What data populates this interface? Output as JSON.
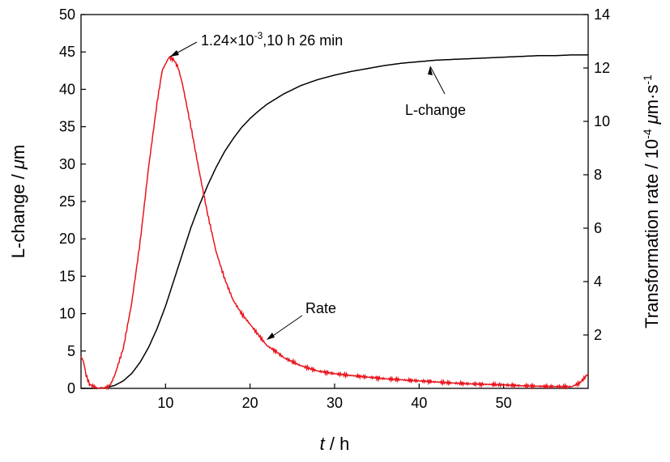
{
  "chart_data": {
    "type": "line",
    "title": "",
    "x_axis": {
      "label_italic": "t",
      "label_rest": " / h",
      "range": [
        0,
        60
      ],
      "ticks": [
        10,
        20,
        30,
        40,
        50
      ],
      "tick_labels": [
        "10",
        "20",
        "30",
        "40",
        "50"
      ]
    },
    "y_left": {
      "label_prefix": "L-change / ",
      "label_italic": "μ",
      "label_suffix": "m",
      "range": [
        0,
        50
      ],
      "ticks": [
        0,
        5,
        10,
        15,
        20,
        25,
        30,
        35,
        40,
        45,
        50
      ],
      "tick_labels": [
        "0",
        "5",
        "10",
        "15",
        "20",
        "25",
        "30",
        "35",
        "40",
        "45",
        "50"
      ]
    },
    "y_right": {
      "label_prefix": "Transformation rate / 10",
      "label_exp": "-4",
      "label_italic": " μ",
      "label_suffix": "m·s",
      "label_exp2": "-1",
      "range": [
        0,
        14
      ],
      "ticks": [
        2,
        4,
        6,
        8,
        10,
        12,
        14
      ],
      "tick_labels": [
        "2",
        "4",
        "6",
        "8",
        "10",
        "12",
        "14"
      ]
    },
    "series": [
      {
        "name": "L-change",
        "axis": "left",
        "color": "#000000",
        "x": [
          0,
          2,
          3,
          4,
          5,
          6,
          7,
          8,
          9,
          10,
          11,
          12,
          13,
          14,
          15,
          16,
          17,
          18,
          19,
          20,
          21,
          22,
          24,
          26,
          28,
          30,
          32,
          34,
          36,
          38,
          40,
          42,
          44,
          46,
          48,
          50,
          52,
          54,
          56,
          58,
          60
        ],
        "y": [
          0,
          0,
          0.1,
          0.4,
          1.0,
          2.0,
          3.5,
          5.5,
          8.0,
          11.0,
          14.5,
          18.0,
          21.5,
          24.5,
          27.2,
          29.6,
          31.7,
          33.4,
          34.9,
          36.1,
          37.1,
          38.0,
          39.4,
          40.5,
          41.3,
          41.9,
          42.4,
          42.8,
          43.2,
          43.5,
          43.7,
          43.9,
          44.0,
          44.1,
          44.2,
          44.3,
          44.4,
          44.5,
          44.5,
          44.6,
          44.6
        ]
      },
      {
        "name": "Rate",
        "axis": "right",
        "color": "#e8141c",
        "x": [
          0,
          0.3,
          0.6,
          1.0,
          2.0,
          3.0,
          3.5,
          4.0,
          5.0,
          6.0,
          7.0,
          8.0,
          9.0,
          9.6,
          10.4,
          11.0,
          11.5,
          12.0,
          13.0,
          14.0,
          15.0,
          16.0,
          17.0,
          18.0,
          19.0,
          20.0,
          21.0,
          22.0,
          23.0,
          24.0,
          26.0,
          28.0,
          30.0,
          32.0,
          34.0,
          36.0,
          38.0,
          40.0,
          42.0,
          44.0,
          46.0,
          48.0,
          50.0,
          52.0,
          54.0,
          56.0,
          58.0,
          59.0,
          60.0
        ],
        "y": [
          1.2,
          1.0,
          0.5,
          0.15,
          0.0,
          0.0,
          0.15,
          0.5,
          1.5,
          3.2,
          5.5,
          8.3,
          10.7,
          11.9,
          12.4,
          12.3,
          12.0,
          11.4,
          9.8,
          8.1,
          6.5,
          5.1,
          4.1,
          3.3,
          2.8,
          2.4,
          2.0,
          1.6,
          1.4,
          1.15,
          0.85,
          0.65,
          0.55,
          0.48,
          0.42,
          0.36,
          0.32,
          0.28,
          0.24,
          0.2,
          0.17,
          0.15,
          0.13,
          0.1,
          0.08,
          0.07,
          0.06,
          0.2,
          0.55
        ]
      }
    ],
    "annotations": {
      "peak_mantissa": "1.24×10",
      "peak_exp": "-3",
      "peak_rest": ",10 h  26 min",
      "l_change_label": "L-change",
      "rate_label": "Rate"
    }
  }
}
